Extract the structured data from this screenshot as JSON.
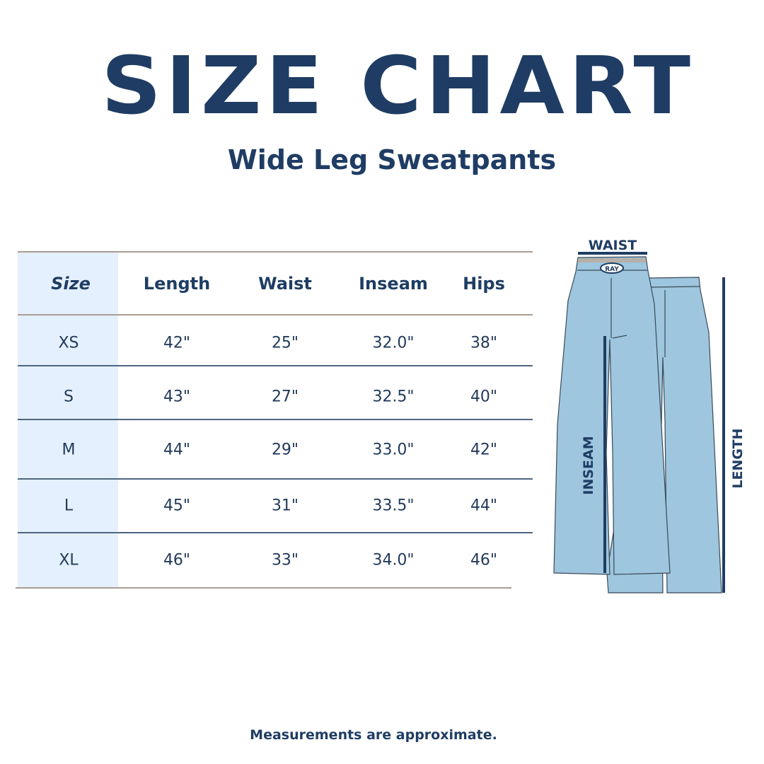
{
  "title": "SIZE CHART",
  "subtitle": "Wide Leg Sweatpants",
  "table": {
    "headers": [
      "Size",
      "Length",
      "Waist",
      "Inseam",
      "Hips"
    ],
    "rows": [
      [
        "XS",
        "42\"",
        "25\"",
        "32.0\"",
        "38\""
      ],
      [
        "S",
        "43\"",
        "27\"",
        "32.5\"",
        "40\""
      ],
      [
        "M",
        "44\"",
        "29\"",
        "33.0\"",
        "42\""
      ],
      [
        "L",
        "45\"",
        "31\"",
        "33.5\"",
        "44\""
      ],
      [
        "XL",
        "46\"",
        "33\"",
        "34.0\"",
        "46\""
      ]
    ]
  },
  "diagram": {
    "waist_label": "WAIST",
    "inseam_label": "INSEAM",
    "length_label": "LENGTH",
    "logo_text": "RAY"
  },
  "footer": "Measurements are approximate.",
  "colors": {
    "navy": "#1f3d64",
    "pants": "#9ec6de",
    "size_column": "#e4f0fd"
  }
}
